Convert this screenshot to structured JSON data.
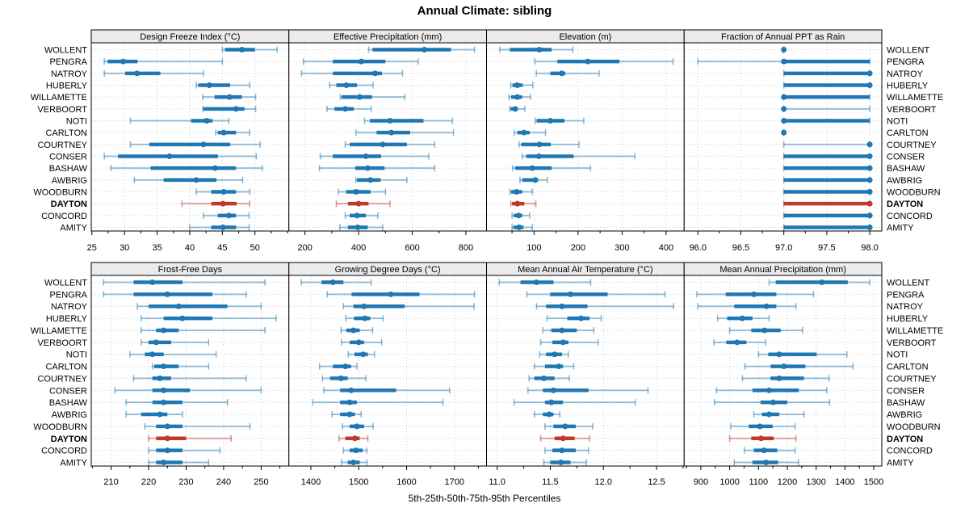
{
  "chart_data": {
    "type": "scatter",
    "subtype": "trellis-percentile-dotplot",
    "title": "Annual Climate: sibling",
    "caption": "5th-25th-50th-75th-95th Percentiles",
    "percentiles": [
      5,
      25,
      50,
      75,
      95
    ],
    "grid": true,
    "legend_position": "none",
    "stations": [
      "WOLLENT",
      "PENGRA",
      "NATROY",
      "HUBERLY",
      "WILLAMETTE",
      "VERBOORT",
      "NOTI",
      "CARLTON",
      "COURTNEY",
      "CONSER",
      "BASHAW",
      "AWBRIG",
      "WOODBURN",
      "DAYTON",
      "CONCORD",
      "AMITY"
    ],
    "highlight_station": "DAYTON",
    "colors": {
      "series": "#1f77b4",
      "highlight": "#c0392b",
      "header_fill": "#ebebeb",
      "grid": "#c9c9c9",
      "border": "#000000",
      "text": "#000000"
    },
    "panels": [
      {
        "title": "Design Freeze Index (°C)",
        "xlim": [
          24.9,
          55.2
        ],
        "ticks": [
          25,
          30,
          35,
          40,
          45,
          50
        ],
        "tick_labels": [
          "25",
          "30",
          "35",
          "40",
          "45",
          "50"
        ],
        "values": [
          [
            45.0,
            45.4,
            48.0,
            50.0,
            53.4
          ],
          [
            26.9,
            27.4,
            29.8,
            32.0,
            45.0
          ],
          [
            26.9,
            30.1,
            31.9,
            35.5,
            42.1
          ],
          [
            41.0,
            41.3,
            43.0,
            46.2,
            49.2
          ],
          [
            42.0,
            43.8,
            46.1,
            48.0,
            50.1
          ],
          [
            42.0,
            42.1,
            47.1,
            48.4,
            50.1
          ],
          [
            30.9,
            40.2,
            42.6,
            43.5,
            46.0
          ],
          [
            44.0,
            44.3,
            45.2,
            47.1,
            49.2
          ],
          [
            30.9,
            33.8,
            42.1,
            46.2,
            50.8
          ],
          [
            26.9,
            29.0,
            36.9,
            44.3,
            50.2
          ],
          [
            27.9,
            34.0,
            43.9,
            47.1,
            51.1
          ],
          [
            31.5,
            36.0,
            41.0,
            44.1,
            48.1
          ],
          [
            41.0,
            43.3,
            45.2,
            47.1,
            49.2
          ],
          [
            38.8,
            43.3,
            45.1,
            47.2,
            49.2
          ],
          [
            42.1,
            44.3,
            46.0,
            47.1,
            49.1
          ],
          [
            40.0,
            43.3,
            45.1,
            47.1,
            49.1
          ]
        ]
      },
      {
        "title": "Effective Precipitation (mm)",
        "xlim": [
          140,
          877
        ],
        "ticks": [
          200,
          400,
          600,
          800
        ],
        "tick_labels": [
          "200",
          "400",
          "600",
          "800"
        ],
        "values": [
          [
            437,
            452,
            645,
            744,
            832
          ],
          [
            194,
            304,
            410,
            500,
            622
          ],
          [
            187,
            304,
            462,
            487,
            564
          ],
          [
            292,
            317,
            354,
            394,
            454
          ],
          [
            332,
            337,
            404,
            450,
            572
          ],
          [
            282,
            310,
            350,
            382,
            447
          ],
          [
            422,
            442,
            517,
            642,
            750
          ],
          [
            390,
            467,
            522,
            592,
            754
          ],
          [
            350,
            367,
            490,
            580,
            684
          ],
          [
            257,
            304,
            427,
            484,
            662
          ],
          [
            254,
            387,
            434,
            497,
            684
          ],
          [
            390,
            394,
            444,
            482,
            580
          ],
          [
            324,
            354,
            390,
            444,
            500
          ],
          [
            317,
            360,
            400,
            437,
            517
          ],
          [
            350,
            367,
            394,
            427,
            472
          ],
          [
            330,
            360,
            397,
            434,
            490
          ]
        ]
      },
      {
        "title": "Elevation (m)",
        "xlim": [
          -8,
          441
        ],
        "ticks": [
          100,
          200,
          300,
          400
        ],
        "tick_labels": [
          "100",
          "200",
          "300",
          "400"
        ],
        "values": [
          [
            22,
            45,
            112,
            140,
            188
          ],
          [
            102,
            153,
            222,
            294,
            416
          ],
          [
            105,
            137,
            163,
            171,
            248
          ],
          [
            47,
            51,
            62,
            74,
            97
          ],
          [
            43,
            48,
            62,
            73,
            92
          ],
          [
            45,
            47,
            57,
            63,
            79
          ],
          [
            103,
            106,
            137,
            169,
            213
          ],
          [
            55,
            62,
            77,
            90,
            126
          ],
          [
            66,
            71,
            112,
            138,
            202
          ],
          [
            73,
            82,
            111,
            190,
            329
          ],
          [
            51,
            57,
            96,
            140,
            228
          ],
          [
            68,
            73,
            103,
            109,
            130
          ],
          [
            45,
            48,
            60,
            73,
            96
          ],
          [
            47,
            50,
            62,
            78,
            104
          ],
          [
            50,
            54,
            65,
            73,
            90
          ],
          [
            50,
            53,
            66,
            76,
            96
          ]
        ]
      },
      {
        "title": "Fraction of Annual PPT as Rain",
        "xlim": [
          95.84,
          98.14
        ],
        "ticks": [
          96.0,
          96.5,
          97.0,
          97.5,
          98.0
        ],
        "tick_labels": [
          "96.0",
          "96.5",
          "97.0",
          "97.5",
          "98.0"
        ],
        "values": [
          [
            97,
            97,
            97,
            97,
            97
          ],
          [
            96,
            97,
            97,
            98,
            98
          ],
          [
            97,
            97,
            98,
            98,
            98
          ],
          [
            97,
            97,
            98,
            98,
            98
          ],
          [
            97,
            97,
            97,
            98,
            98
          ],
          [
            97,
            97,
            97,
            97,
            98
          ],
          [
            97,
            97,
            97,
            98,
            98
          ],
          [
            97,
            97,
            97,
            97,
            97
          ],
          [
            97,
            98,
            98,
            98,
            98
          ],
          [
            97,
            97,
            98,
            98,
            98
          ],
          [
            97,
            97,
            98,
            98,
            98
          ],
          [
            97,
            97,
            98,
            98,
            98
          ],
          [
            97,
            97,
            98,
            98,
            98
          ],
          [
            97,
            97,
            98,
            98,
            98
          ],
          [
            97,
            97,
            98,
            98,
            98
          ],
          [
            97,
            97,
            98,
            98,
            98
          ]
        ]
      },
      {
        "title": "Frost-Free Days",
        "xlim": [
          204.7,
          257.4
        ],
        "ticks": [
          210,
          220,
          230,
          240,
          250
        ],
        "tick_labels": [
          "210",
          "220",
          "230",
          "240",
          "250"
        ],
        "values": [
          [
            208,
            216,
            221,
            229,
            251
          ],
          [
            208,
            216,
            225,
            237,
            246
          ],
          [
            217,
            220,
            228,
            241,
            250
          ],
          [
            218,
            224,
            229,
            237,
            254
          ],
          [
            218,
            222,
            224,
            228,
            251
          ],
          [
            218,
            220,
            222,
            226,
            236
          ],
          [
            215,
            219,
            221,
            224,
            238
          ],
          [
            221,
            221.5,
            224,
            228,
            236
          ],
          [
            216,
            221,
            223,
            226,
            246
          ],
          [
            211,
            221,
            224,
            231,
            250
          ],
          [
            214,
            221,
            224,
            229,
            241
          ],
          [
            214,
            218,
            223,
            225,
            229
          ],
          [
            219,
            222,
            225,
            229,
            247
          ],
          [
            220,
            222,
            225,
            230,
            242
          ],
          [
            220,
            222,
            225,
            229,
            239
          ],
          [
            220,
            222,
            224,
            229,
            236
          ]
        ]
      },
      {
        "title": "Growing Degree Days (°C)",
        "xlim": [
          1354,
          1767
        ],
        "ticks": [
          1400,
          1500,
          1600,
          1700
        ],
        "tick_labels": [
          "1400",
          "1500",
          "1600",
          "1700"
        ],
        "values": [
          [
            1380,
            1422,
            1446,
            1468,
            1526
          ],
          [
            1434,
            1485,
            1567,
            1627,
            1742
          ],
          [
            1468,
            1489,
            1511,
            1596,
            1741
          ],
          [
            1473,
            1490,
            1513,
            1524,
            1551
          ],
          [
            1463,
            1474,
            1489,
            1502,
            1529
          ],
          [
            1464,
            1481,
            1500,
            1511,
            1548
          ],
          [
            1478,
            1491,
            1509,
            1519,
            1533
          ],
          [
            1418,
            1446,
            1472,
            1484,
            1496
          ],
          [
            1424,
            1440,
            1463,
            1477,
            1515
          ],
          [
            1427,
            1461,
            1484,
            1578,
            1690
          ],
          [
            1404,
            1461,
            1481,
            1496,
            1676
          ],
          [
            1444,
            1461,
            1481,
            1492,
            1505
          ],
          [
            1466,
            1481,
            1496,
            1511,
            1530
          ],
          [
            1459,
            1472,
            1492,
            1502,
            1519
          ],
          [
            1468,
            1481,
            1494,
            1508,
            1517
          ],
          [
            1464,
            1477,
            1489,
            1502,
            1517
          ]
        ]
      },
      {
        "title": "Mean Annual Air Temperature (°C)",
        "xlim": [
          10.9,
          12.76
        ],
        "ticks": [
          11.0,
          11.5,
          12.0,
          12.5
        ],
        "tick_labels": [
          "11.0",
          "11.5",
          "12.0",
          "12.5"
        ],
        "values": [
          [
            11.02,
            11.22,
            11.37,
            11.53,
            11.88
          ],
          [
            11.28,
            11.5,
            11.69,
            12.04,
            12.58
          ],
          [
            11.37,
            11.46,
            11.61,
            11.85,
            12.66
          ],
          [
            11.47,
            11.66,
            11.79,
            11.87,
            11.98
          ],
          [
            11.43,
            11.51,
            11.61,
            11.75,
            11.91
          ],
          [
            11.41,
            11.52,
            11.62,
            11.67,
            11.95
          ],
          [
            11.4,
            11.46,
            11.54,
            11.61,
            11.67
          ],
          [
            11.35,
            11.45,
            11.58,
            11.62,
            11.72
          ],
          [
            11.3,
            11.35,
            11.44,
            11.54,
            11.68
          ],
          [
            11.29,
            11.43,
            11.53,
            11.86,
            12.42
          ],
          [
            11.16,
            11.45,
            11.51,
            11.62,
            12.3
          ],
          [
            11.35,
            11.43,
            11.49,
            11.53,
            11.59
          ],
          [
            11.45,
            11.53,
            11.64,
            11.74,
            11.9
          ],
          [
            11.41,
            11.54,
            11.62,
            11.73,
            11.87
          ],
          [
            11.45,
            11.52,
            11.61,
            11.74,
            11.86
          ],
          [
            11.44,
            11.5,
            11.6,
            11.69,
            11.84
          ]
        ]
      },
      {
        "title": "Mean Annual Precipitation (mm)",
        "xlim": [
          842,
          1528
        ],
        "ticks": [
          900,
          1000,
          1100,
          1200,
          1300,
          1400,
          1500
        ],
        "tick_labels": [
          "900",
          "1000",
          "1100",
          "1200",
          "1300",
          "1400",
          "1500"
        ],
        "values": [
          [
            1137,
            1160,
            1320,
            1410,
            1486
          ],
          [
            886,
            986,
            1084,
            1162,
            1291
          ],
          [
            889,
            1016,
            1128,
            1162,
            1230
          ],
          [
            958,
            991,
            1044,
            1079,
            1137
          ],
          [
            1000,
            1075,
            1121,
            1177,
            1253
          ],
          [
            945,
            988,
            1026,
            1058,
            1125
          ],
          [
            1100,
            1134,
            1172,
            1302,
            1407
          ],
          [
            1053,
            1142,
            1188,
            1263,
            1428
          ],
          [
            1044,
            1142,
            1172,
            1258,
            1345
          ],
          [
            954,
            1079,
            1137,
            1240,
            1337
          ],
          [
            947,
            1107,
            1151,
            1200,
            1347
          ],
          [
            1084,
            1112,
            1137,
            1172,
            1258
          ],
          [
            1004,
            1066,
            1105,
            1149,
            1227
          ],
          [
            1000,
            1075,
            1109,
            1153,
            1230
          ],
          [
            1051,
            1084,
            1119,
            1165,
            1227
          ],
          [
            1016,
            1079,
            1126,
            1168,
            1239
          ]
        ]
      }
    ]
  }
}
